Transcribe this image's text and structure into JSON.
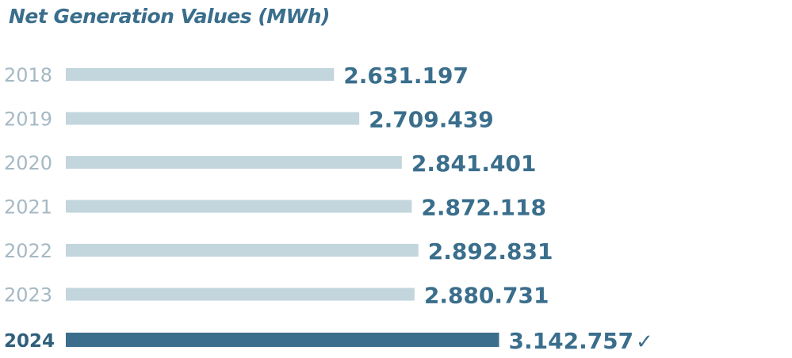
{
  "colors": {
    "bar": "#c3d5dd",
    "bar_highlight": "#3a6e8c",
    "year_label": "#a5b9c4",
    "year_label_highlight": "#2f5f7a",
    "value_label": "#3a6e8c",
    "check": "#3a6e8c"
  },
  "chart_data": {
    "type": "bar",
    "orientation": "horizontal",
    "title": "Net Generation Values (MWh)",
    "categories": [
      "2018",
      "2019",
      "2020",
      "2021",
      "2022",
      "2023",
      "2024"
    ],
    "values": [
      2631197,
      2709439,
      2841401,
      2872118,
      2892831,
      2880731,
      3142757
    ],
    "value_labels": [
      "2.631.197",
      "2.709.439",
      "2.841.401",
      "2.872.118",
      "2.892.831",
      "2.880.731",
      "3.142.757"
    ],
    "highlight_category": "2024",
    "highlight_marker": "✓",
    "xlim": [
      1800000,
      3250000
    ],
    "grid": false,
    "legend": "none"
  }
}
